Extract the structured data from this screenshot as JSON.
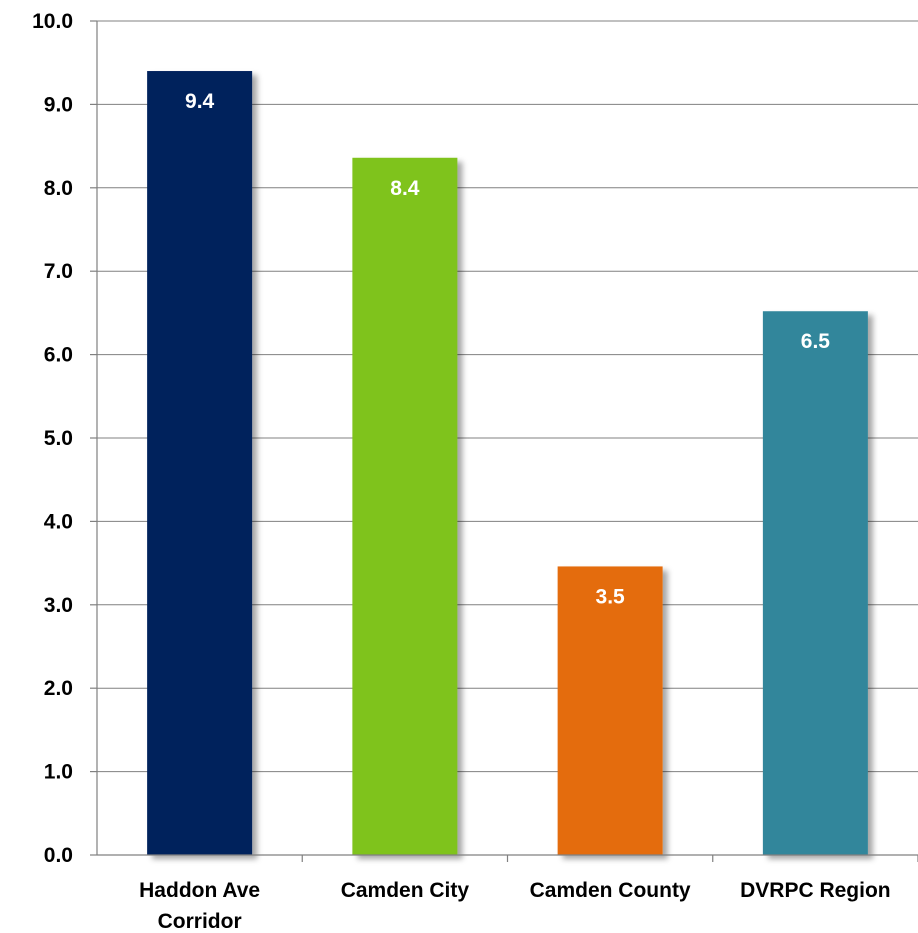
{
  "chart_data": {
    "type": "bar",
    "title": "",
    "xlabel": "",
    "ylabel": "",
    "ylim": [
      0,
      10
    ],
    "ytick_step": 1,
    "ytick_format": "one-decimal",
    "grid": true,
    "legend": "none",
    "categories": [
      [
        "Haddon Ave",
        "Corridor"
      ],
      [
        "Camden City"
      ],
      [
        "Camden County"
      ],
      [
        "DVRPC Region"
      ]
    ],
    "values": [
      9.4,
      8.36,
      3.46,
      6.52
    ],
    "data_labels": [
      "9.4",
      "8.4",
      "3.5",
      "6.5"
    ],
    "colors": [
      "#03215c",
      "#7fc31b",
      "#e46c0e",
      "#31869b"
    ],
    "label_color": "#ffffff",
    "grid_color": "#808080"
  }
}
